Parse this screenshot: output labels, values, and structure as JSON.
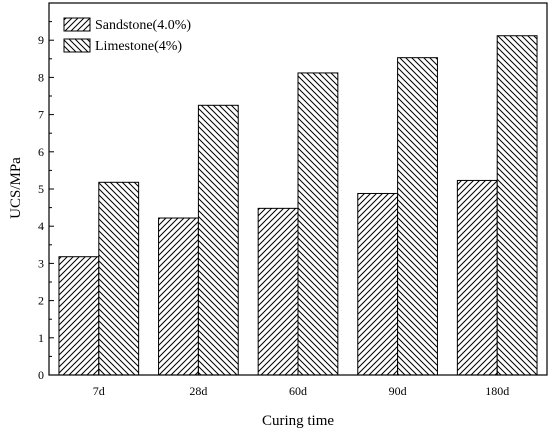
{
  "chart_data": {
    "type": "bar",
    "categories": [
      "7d",
      "28d",
      "60d",
      "90d",
      "180d"
    ],
    "series": [
      {
        "name": "Sandstone(4.0%)",
        "values": [
          3.18,
          4.22,
          4.48,
          4.88,
          5.23
        ],
        "hatch": "forward"
      },
      {
        "name": "Limestone(4%)",
        "values": [
          5.18,
          7.25,
          8.12,
          8.53,
          9.12
        ],
        "hatch": "backward"
      }
    ],
    "xlabel": "Curing time",
    "ylabel": "UCS/MPa",
    "ylim": [
      0,
      10
    ],
    "yticks": [
      "0",
      "1",
      "2",
      "3",
      "4",
      "5",
      "6",
      "7",
      "8",
      "9"
    ],
    "grid": false,
    "legend_position": "top-left"
  }
}
